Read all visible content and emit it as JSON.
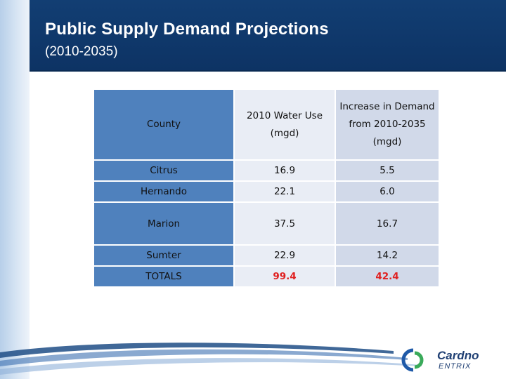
{
  "header": {
    "title": "Public Supply Demand Projections",
    "subtitle": "(2010-2035)"
  },
  "table": {
    "columns": {
      "county": "County",
      "water_use_2010": "2010 Water Use (mgd)",
      "increase": "Increase in Demand from 2010-2035 (mgd)"
    },
    "rows": [
      {
        "county": "Citrus",
        "water_use_2010": "16.9",
        "increase": "5.5"
      },
      {
        "county": "Hernando",
        "water_use_2010": "22.1",
        "increase": "6.0"
      },
      {
        "county": "Marion",
        "water_use_2010": "37.5",
        "increase": "16.7"
      },
      {
        "county": "Sumter",
        "water_use_2010": "22.9",
        "increase": "14.2"
      }
    ],
    "totals": {
      "label": "TOTALS",
      "water_use_2010": "99.4",
      "increase": "42.4"
    }
  },
  "logo": {
    "name": "Cardno",
    "sub": "ENTRIX"
  },
  "colors": {
    "header": "#123e73",
    "county_column": "#4f81bd",
    "totals_text": "#e02020"
  }
}
